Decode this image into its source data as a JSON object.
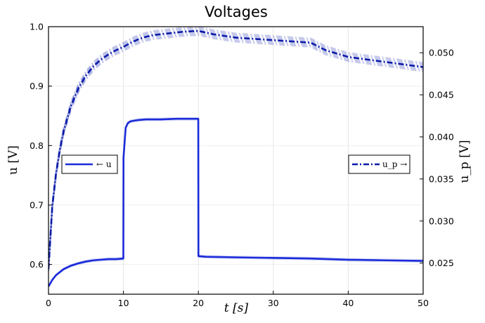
{
  "chart_data": {
    "type": "line",
    "title": "Voltages",
    "xlabel": "t [s]",
    "ylabel_left": "u [V]",
    "ylabel_right": "u_p [V]",
    "xlim": [
      0,
      50
    ],
    "ylim_left": [
      0.55,
      1.0
    ],
    "ylim_right": [
      0.0213,
      0.0531
    ],
    "xticks": [
      "0",
      "10",
      "20",
      "30",
      "40",
      "50"
    ],
    "yticks_left": [
      "0.6",
      "0.7",
      "0.8",
      "0.9",
      "1.0"
    ],
    "yticks_right": [
      "0.025",
      "0.030",
      "0.035",
      "0.040",
      "0.045",
      "0.050"
    ],
    "grid": true,
    "legends": [
      {
        "label": "← u",
        "placement": "left-middle",
        "style": "solid"
      },
      {
        "label": "u_p →",
        "placement": "right-middle",
        "style": "dash-dot"
      }
    ],
    "series": [
      {
        "axis": "left",
        "style": "solid",
        "color": "#1a2ad8",
        "x": [
          0,
          0.5,
          1,
          2,
          3,
          4,
          5,
          6,
          7,
          8,
          9,
          9.99,
          10.01,
          10.3,
          10.6,
          11,
          11.5,
          12,
          13,
          15,
          17,
          19,
          19.99,
          20.01,
          21,
          25,
          30,
          35,
          40,
          45,
          50
        ],
        "y": [
          0.563,
          0.574,
          0.582,
          0.592,
          0.598,
          0.602,
          0.605,
          0.607,
          0.608,
          0.609,
          0.609,
          0.61,
          0.78,
          0.83,
          0.838,
          0.841,
          0.842,
          0.843,
          0.844,
          0.844,
          0.845,
          0.845,
          0.845,
          0.614,
          0.613,
          0.612,
          0.611,
          0.61,
          0.608,
          0.607,
          0.606
        ]
      },
      {
        "axis": "right",
        "style": "dash-dot",
        "color": "#0a1aa8",
        "x": [
          0,
          0.5,
          1,
          1.5,
          2,
          3,
          4,
          5,
          6,
          7,
          8,
          9,
          10,
          11,
          12,
          13,
          14,
          16,
          18,
          20,
          22,
          25,
          30,
          35,
          37,
          40,
          45,
          50
        ],
        "y": [
          0.0243,
          0.0317,
          0.0356,
          0.0384,
          0.0406,
          0.0437,
          0.0458,
          0.0473,
          0.0484,
          0.0492,
          0.0498,
          0.0503,
          0.0507,
          0.0512,
          0.0516,
          0.0519,
          0.0521,
          0.0523,
          0.0525,
          0.0526,
          0.0522,
          0.0518,
          0.0515,
          0.0512,
          0.0503,
          0.0495,
          0.0489,
          0.0483
        ]
      }
    ]
  }
}
